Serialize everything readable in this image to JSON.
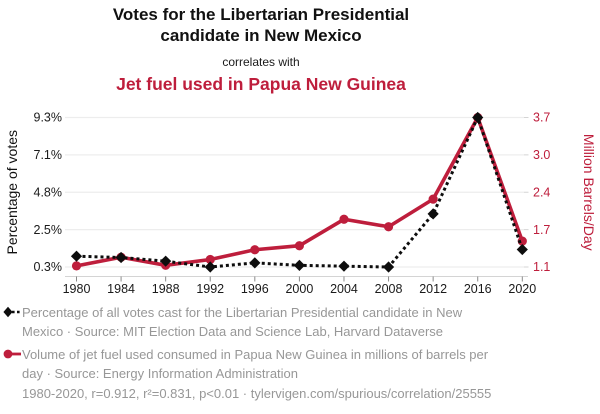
{
  "header": {
    "title_line1": "Votes for the Libertarian Presidential",
    "title_line2": "candidate in New Mexico",
    "connector": "correlates with",
    "subtitle": "Jet fuel used in Papua New Guinea"
  },
  "chart_data": {
    "type": "line",
    "x": [
      1980,
      1984,
      1988,
      1992,
      1996,
      2000,
      2004,
      2008,
      2012,
      2016,
      2020
    ],
    "x_ticks": [
      "1980",
      "1984",
      "1988",
      "1992",
      "1996",
      "2000",
      "2004",
      "2008",
      "2012",
      "2016",
      "2020"
    ],
    "series": [
      {
        "name": "Percentage of all votes cast for the Libertarian Presidential candidate in New Mexico",
        "axis": "left",
        "style": "dashed",
        "marker": "diamond",
        "values": [
          0.95,
          0.87,
          0.65,
          0.3,
          0.55,
          0.4,
          0.35,
          0.3,
          3.5,
          9.3,
          1.35
        ]
      },
      {
        "name": "Volume of jet fuel used consumed in Papua New Guinea in millions of barrels per day",
        "axis": "right",
        "style": "solid",
        "marker": "circle",
        "values": [
          1.12,
          1.27,
          1.13,
          1.23,
          1.4,
          1.47,
          1.93,
          1.8,
          2.28,
          3.7,
          1.55
        ]
      }
    ],
    "left_axis": {
      "label": "Percentage of votes",
      "ticks": [
        "9.3%",
        "7.1%",
        "4.8%",
        "2.5%",
        "0.3%"
      ],
      "min": 0.3,
      "max": 9.3
    },
    "right_axis": {
      "label": "Million Barrels/Day",
      "ticks": [
        "3.7",
        "3.0",
        "2.4",
        "1.7",
        "1.1"
      ],
      "min": 1.1,
      "max": 3.7
    },
    "grid": "horizontal",
    "legend_position": "bottom"
  },
  "legend": {
    "items": [
      {
        "marker": "black-diamond-dashed",
        "lines": [
          "Percentage of all votes cast for the Libertarian Presidential candidate in New",
          "Mexico · Source: MIT Election Data and Science Lab, Harvard Dataverse"
        ]
      },
      {
        "marker": "red-circle-solid",
        "lines": [
          "Volume of jet fuel used consumed in Papua New Guinea in millions of barrels per",
          "day · Source: Energy Information Administration"
        ]
      }
    ]
  },
  "footer": {
    "text": "1980-2020, r=0.912, r²=0.831, p<0.01 · tylervigen.com/spurious/correlation/25555"
  },
  "colors": {
    "accent_red": "#be1e3c",
    "series_black": "#0d0d0d",
    "legend_gray": "#979797",
    "gridline": "#ededed",
    "axis_line": "#d4d4d4",
    "tick_mark": "#8a8a8a",
    "tick_label": "#1a1a1a"
  }
}
